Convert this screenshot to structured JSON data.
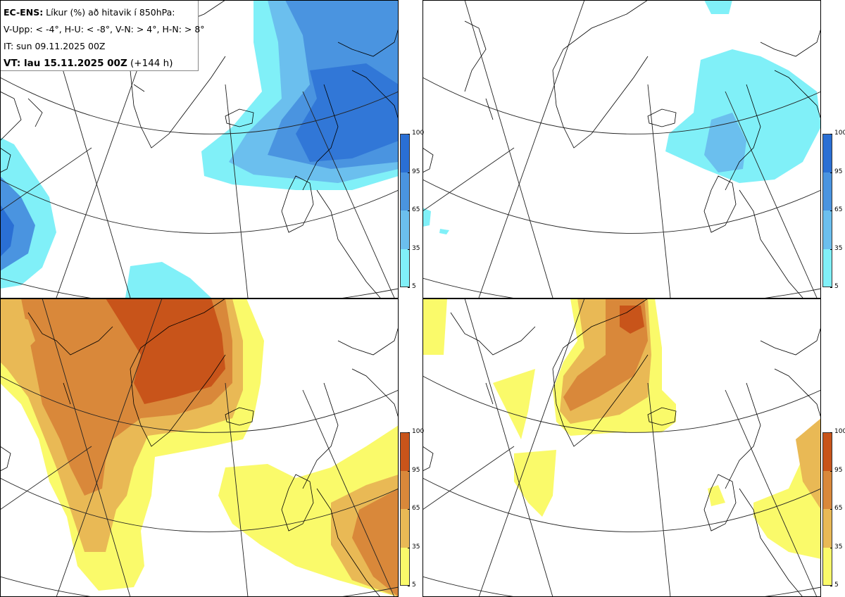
{
  "info": {
    "model": "EC-ENS:",
    "title": " Líkur (%) að hitavik í 850hPa:",
    "thresholds": "V-Upp: < -4°, H-U: < -8°, V-N: > 4°, H-N: > 8°",
    "it": "IT: sun 09.11.2025 00Z",
    "vt_label": "VT: lau 15.11.2025 00Z",
    "vt_offset": " (+144 h)"
  },
  "panels": [
    {
      "id": "V-Upp",
      "threshold": "< -4°",
      "palette": "blue"
    },
    {
      "id": "H-U",
      "threshold": "< -8°",
      "palette": "blue"
    },
    {
      "id": "V-N",
      "threshold": "> 4°",
      "palette": "orange"
    },
    {
      "id": "H-N",
      "threshold": "> 8°",
      "palette": "orange"
    }
  ],
  "colorbar": {
    "ticks": [
      "100",
      "95",
      "65",
      "35",
      "5"
    ],
    "blue": [
      "#2a6fd4",
      "#4a94e0",
      "#6bbfee",
      "#80f0f8"
    ],
    "orange": [
      "#c8541a",
      "#d9883a",
      "#e9b955",
      "#fafa6a"
    ]
  },
  "colors": {
    "land_outline": "#000000",
    "grid": "#222222"
  }
}
